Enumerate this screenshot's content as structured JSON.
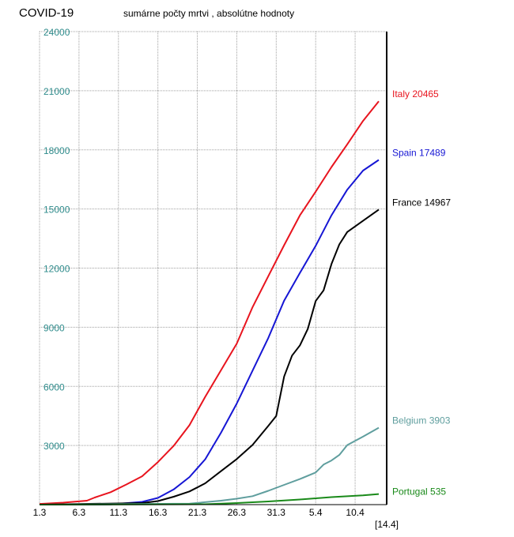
{
  "title": "COVID-19",
  "subtitle": "sumárne počty mrtvi , absolútne hodnoty",
  "colors": {
    "Italy": "#e8141e",
    "Spain": "#1616d4",
    "France": "#000000",
    "Belgium": "#5f9e9e",
    "Portugal": "#1a8a1a",
    "yaxis_text": "#2e8b8b",
    "grid": "#a0a0a0"
  },
  "chart_data": {
    "type": "line",
    "title": "COVID-19",
    "subtitle": "sumárne počty mrtvi , absolútne hodnoty",
    "xlabel": "",
    "ylabel": "",
    "x_day_range": [
      1,
      45
    ],
    "x_tick_labels": [
      "1.3",
      "6.3",
      "11.3",
      "16.3",
      "21.3",
      "26.3",
      "31.3",
      "5.4",
      "10.4"
    ],
    "x_end_label": "[14.4]",
    "ylim": [
      0,
      24000
    ],
    "y_ticks": [
      3000,
      6000,
      9000,
      12000,
      15000,
      18000,
      21000,
      24000
    ],
    "grid": true,
    "series": [
      {
        "name": "Italy",
        "label": "Italy 20465",
        "points": [
          [
            1,
            35
          ],
          [
            4,
            100
          ],
          [
            7,
            200
          ],
          [
            8,
            360
          ],
          [
            10,
            630
          ],
          [
            12,
            1020
          ],
          [
            14,
            1440
          ],
          [
            16,
            2160
          ],
          [
            18,
            2980
          ],
          [
            20,
            4030
          ],
          [
            22,
            5470
          ],
          [
            24,
            6820
          ],
          [
            26,
            8170
          ],
          [
            28,
            10020
          ],
          [
            30,
            11590
          ],
          [
            32,
            13160
          ],
          [
            34,
            14680
          ],
          [
            36,
            15880
          ],
          [
            38,
            17130
          ],
          [
            40,
            18280
          ],
          [
            42,
            19470
          ],
          [
            44,
            20465
          ]
        ]
      },
      {
        "name": "Spain",
        "label": "Spain 17489",
        "points": [
          [
            1,
            0
          ],
          [
            10,
            10
          ],
          [
            14,
            140
          ],
          [
            16,
            340
          ],
          [
            18,
            770
          ],
          [
            20,
            1400
          ],
          [
            22,
            2300
          ],
          [
            24,
            3650
          ],
          [
            26,
            5130
          ],
          [
            28,
            6800
          ],
          [
            30,
            8460
          ],
          [
            32,
            10350
          ],
          [
            34,
            11760
          ],
          [
            36,
            13130
          ],
          [
            38,
            14680
          ],
          [
            40,
            15980
          ],
          [
            42,
            16950
          ],
          [
            44,
            17489
          ]
        ]
      },
      {
        "name": "France",
        "label": "France 14967",
        "points": [
          [
            1,
            0
          ],
          [
            14,
            80
          ],
          [
            16,
            180
          ],
          [
            18,
            400
          ],
          [
            20,
            670
          ],
          [
            22,
            1080
          ],
          [
            24,
            1700
          ],
          [
            26,
            2310
          ],
          [
            28,
            3030
          ],
          [
            30,
            4000
          ],
          [
            31,
            4500
          ],
          [
            32,
            6500
          ],
          [
            33,
            7560
          ],
          [
            34,
            8080
          ],
          [
            35,
            8910
          ],
          [
            36,
            10330
          ],
          [
            37,
            10870
          ],
          [
            38,
            12210
          ],
          [
            39,
            13200
          ],
          [
            40,
            13830
          ],
          [
            42,
            14400
          ],
          [
            44,
            14967
          ]
        ]
      },
      {
        "name": "Belgium",
        "label": "Belgium 3903",
        "points": [
          [
            1,
            0
          ],
          [
            20,
            50
          ],
          [
            24,
            200
          ],
          [
            26,
            300
          ],
          [
            28,
            430
          ],
          [
            30,
            700
          ],
          [
            32,
            1000
          ],
          [
            34,
            1300
          ],
          [
            36,
            1630
          ],
          [
            37,
            2030
          ],
          [
            38,
            2240
          ],
          [
            39,
            2520
          ],
          [
            40,
            3020
          ],
          [
            42,
            3450
          ],
          [
            44,
            3903
          ]
        ]
      },
      {
        "name": "Portugal",
        "label": "Portugal 535",
        "points": [
          [
            1,
            0
          ],
          [
            22,
            20
          ],
          [
            26,
            80
          ],
          [
            30,
            160
          ],
          [
            34,
            260
          ],
          [
            38,
            380
          ],
          [
            42,
            470
          ],
          [
            44,
            535
          ]
        ]
      }
    ]
  }
}
